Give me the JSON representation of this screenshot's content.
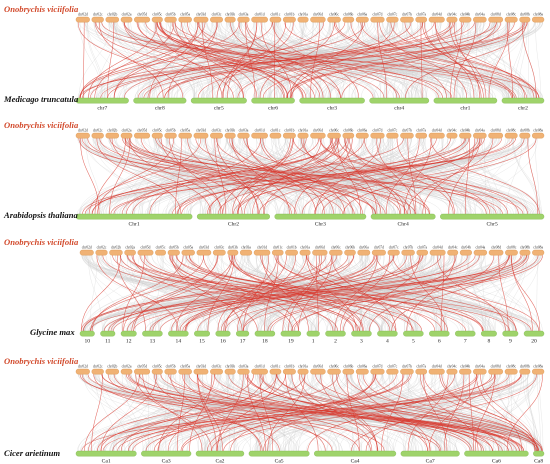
{
  "panels": [
    {
      "top_label": "Onobrychis viciifolia",
      "bottom_label": "Medicago truncatula",
      "top_chrs": [
        "chr02d",
        "chr02c",
        "chr02b",
        "chr02a",
        "chr05d",
        "chr05c",
        "chr05b",
        "chr05a",
        "chr03d",
        "chr03c",
        "chr03b",
        "chr03a",
        "chr01d",
        "chr01c",
        "chr01b",
        "chr01a",
        "chr06d",
        "chr06c",
        "chr06b",
        "chr06a",
        "chr07d",
        "chr07c",
        "chr07b",
        "chr07a",
        "chr04d",
        "chr04c",
        "chr04b",
        "chr04a",
        "chr08d",
        "chr08c",
        "chr08b",
        "chr08a"
      ],
      "bottom_chrs": [
        "chr7",
        "chr8",
        "chr5",
        "chr6",
        "chr3",
        "chr4",
        "chr1",
        "chr2"
      ]
    },
    {
      "top_label": "Onobrychis viciifolia",
      "bottom_label": "Arabidopsis thaliana",
      "top_chrs": [
        "chr02d",
        "chr02c",
        "chr02b",
        "chr02a",
        "chr05d",
        "chr05c",
        "chr05b",
        "chr05a",
        "chr03d",
        "chr03c",
        "chr03b",
        "chr03a",
        "chr01d",
        "chr01c",
        "chr01b",
        "chr01a",
        "chr06d",
        "chr06c",
        "chr06b",
        "chr06a",
        "chr07d",
        "chr07c",
        "chr07b",
        "chr07a",
        "chr04d",
        "chr04c",
        "chr04b",
        "chr04a",
        "chr08d",
        "chr08c",
        "chr08b",
        "chr08a"
      ],
      "bottom_chrs": [
        "Chr1",
        "Chr2",
        "Chr3",
        "Chr4",
        "Chr5"
      ]
    },
    {
      "top_label": "Onobrychis viciifolia",
      "bottom_label": "Glycine max",
      "top_chrs": [
        "chr02d",
        "chr02c",
        "chr02b",
        "chr02a",
        "chr05d",
        "chr05c",
        "chr05b",
        "chr05a",
        "chr03d",
        "chr03c",
        "chr03b",
        "chr03a",
        "chr01d",
        "chr01c",
        "chr01b",
        "chr01a",
        "chr06d",
        "chr06c",
        "chr06b",
        "chr06a",
        "chr07d",
        "chr07c",
        "chr07b",
        "chr07a",
        "chr04d",
        "chr04c",
        "chr04b",
        "chr04a",
        "chr08d",
        "chr08c",
        "chr08b",
        "chr08a"
      ],
      "bottom_chrs": [
        "10",
        "11",
        "12",
        "13",
        "14",
        "15",
        "16",
        "17",
        "18",
        "19",
        "1",
        "2",
        "3",
        "4",
        "5",
        "6",
        "7",
        "8",
        "9",
        "20"
      ]
    },
    {
      "top_label": "Onobrychis viciifolia",
      "bottom_label": "Cicer arietinum",
      "top_chrs": [
        "chr02d",
        "chr02c",
        "chr02b",
        "chr02a",
        "chr05d",
        "chr05c",
        "chr05b",
        "chr05a",
        "chr03d",
        "chr03c",
        "chr03b",
        "chr03a",
        "chr01d",
        "chr01c",
        "chr01b",
        "chr01a",
        "chr06d",
        "chr06c",
        "chr06b",
        "chr06a",
        "chr07d",
        "chr07c",
        "chr07b",
        "chr07a",
        "chr04d",
        "chr04c",
        "chr04b",
        "chr04a",
        "chr08d",
        "chr08c",
        "chr08b",
        "chr08a"
      ],
      "bottom_chrs": [
        "Ca1",
        "Ca3",
        "Ca2",
        "Ca5",
        "Ca4",
        "Ca7",
        "Ca6",
        "Ca8"
      ]
    }
  ],
  "colors": {
    "top_bar": "#f0b275",
    "bottom_bar": "#9fd36b",
    "highlight_link": "#d9382e",
    "background_link": "#cfcfcf",
    "top_species_label": "#d24a2c"
  }
}
